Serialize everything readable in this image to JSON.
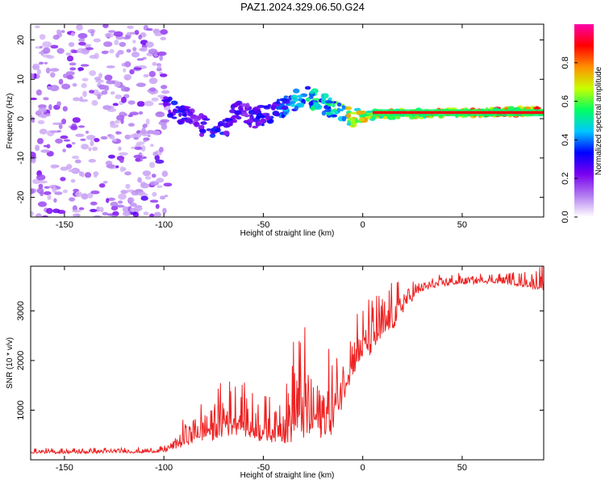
{
  "title": "PAZ1.2024.329.06.50.G24",
  "chart_data": [
    {
      "type": "heatmap",
      "xlabel": "Height of straight line (km)",
      "ylabel": "Frequency (Hz)",
      "xlim": [
        -167,
        91
      ],
      "ylim": [
        -25,
        24
      ],
      "xticks": [
        -150,
        -100,
        -50,
        0,
        50
      ],
      "yticks": [
        -20,
        -10,
        0,
        10,
        20
      ],
      "colorbar": {
        "label": "Normalized spectral amplitude",
        "range": [
          0,
          1
        ],
        "ticks": [
          0.0,
          0.2,
          0.4,
          0.6,
          0.8
        ],
        "colors": [
          "#ffffff",
          "#b27cf0",
          "#7a00f0",
          "#0000ff",
          "#00c8ff",
          "#00ff60",
          "#c8ff00",
          "#ff9000",
          "#ff0000",
          "#ff00aa"
        ]
      },
      "ridge": {
        "x": [
          -100,
          -95,
          -90,
          -85,
          -80,
          -75,
          -70,
          -65,
          -60,
          -55,
          -50,
          -45,
          -40,
          -35,
          -30,
          -25,
          -20,
          -15,
          -10,
          -5,
          0,
          10,
          20,
          30,
          40,
          50,
          60,
          70,
          80,
          90
        ],
        "frequency": [
          4,
          2,
          1,
          0,
          -2,
          -4,
          -3,
          1,
          2,
          0,
          1,
          2,
          3,
          4,
          6,
          5,
          4,
          2,
          1,
          0.5,
          0.5,
          1.2,
          1.1,
          1.3,
          1.5,
          1.5,
          1.6,
          1.7,
          1.8,
          1.8
        ],
        "amplitude": [
          0.3,
          0.35,
          0.35,
          0.3,
          0.35,
          0.4,
          0.35,
          0.3,
          0.3,
          0.35,
          0.35,
          0.4,
          0.45,
          0.5,
          0.55,
          0.6,
          0.55,
          0.6,
          0.7,
          0.8,
          0.8,
          0.8,
          0.85,
          0.85,
          0.85,
          0.9,
          0.9,
          0.95,
          0.95,
          0.95
        ]
      }
    },
    {
      "type": "line",
      "xlabel": "Height of straight line (km)",
      "ylabel": "SNR (10 * v/v)",
      "xlim": [
        -167,
        91
      ],
      "ylim": [
        0,
        3900
      ],
      "xticks": [
        -150,
        -100,
        -50,
        0,
        50
      ],
      "yticks": [
        1000,
        2000,
        3000
      ],
      "series": [
        {
          "color": "#ee2222",
          "x": [
            -167,
            -150,
            -130,
            -110,
            -100,
            -95,
            -90,
            -85,
            -80,
            -75,
            -70,
            -65,
            -60,
            -55,
            -50,
            -45,
            -40,
            -35,
            -30,
            -25,
            -20,
            -15,
            -10,
            -5,
            0,
            5,
            10,
            15,
            20,
            25,
            30,
            40,
            50,
            60,
            70,
            80,
            91
          ],
          "y": [
            150,
            150,
            160,
            160,
            180,
            280,
            380,
            500,
            550,
            600,
            700,
            750,
            700,
            600,
            550,
            550,
            600,
            800,
            900,
            800,
            700,
            900,
            1400,
            2000,
            2200,
            2400,
            2600,
            2800,
            3100,
            3300,
            3450,
            3550,
            3580,
            3600,
            3600,
            3550,
            3500
          ],
          "spread": [
            50,
            60,
            60,
            60,
            60,
            150,
            300,
            400,
            500,
            550,
            600,
            600,
            550,
            500,
            500,
            500,
            700,
            1100,
            1200,
            1000,
            900,
            900,
            800,
            700,
            600,
            600,
            550,
            500,
            350,
            250,
            150,
            120,
            120,
            120,
            120,
            150,
            300
          ]
        }
      ]
    }
  ]
}
